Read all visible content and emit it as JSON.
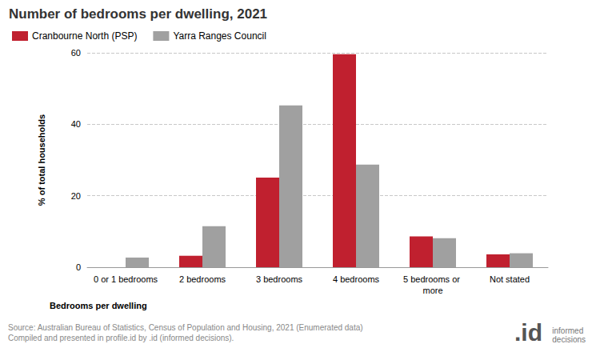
{
  "chart_data": {
    "type": "bar",
    "title": "Number of bedrooms per dwelling, 2021",
    "x_label": "Bedrooms per dwelling",
    "y_label": "% of total households",
    "categories": [
      "0 or 1 bedrooms",
      "2 bedrooms",
      "3 bedrooms",
      "4 bedrooms",
      "5 bedrooms or more",
      "Not stated"
    ],
    "series": [
      {
        "name": "Cranbourne North (PSP)",
        "color": "#c0202f",
        "values": [
          0,
          3.2,
          25.1,
          59.6,
          8.6,
          3.6
        ]
      },
      {
        "name": "Yarra Ranges Council",
        "color": "#a0a0a0",
        "values": [
          2.7,
          11.5,
          45.3,
          28.7,
          8.1,
          3.9
        ]
      }
    ],
    "ylim": [
      0,
      60
    ],
    "yticks": [
      0,
      20,
      40,
      60
    ],
    "grid": true,
    "legend": "top-left",
    "source": [
      "Source: Australian Bureau of Statistics, Census of Population and Housing, 2021 (Enumerated data)",
      "Compiled and presented in profile.id by .id (informed decisions)."
    ],
    "logo": [
      ".id",
      "informed decisions"
    ]
  }
}
